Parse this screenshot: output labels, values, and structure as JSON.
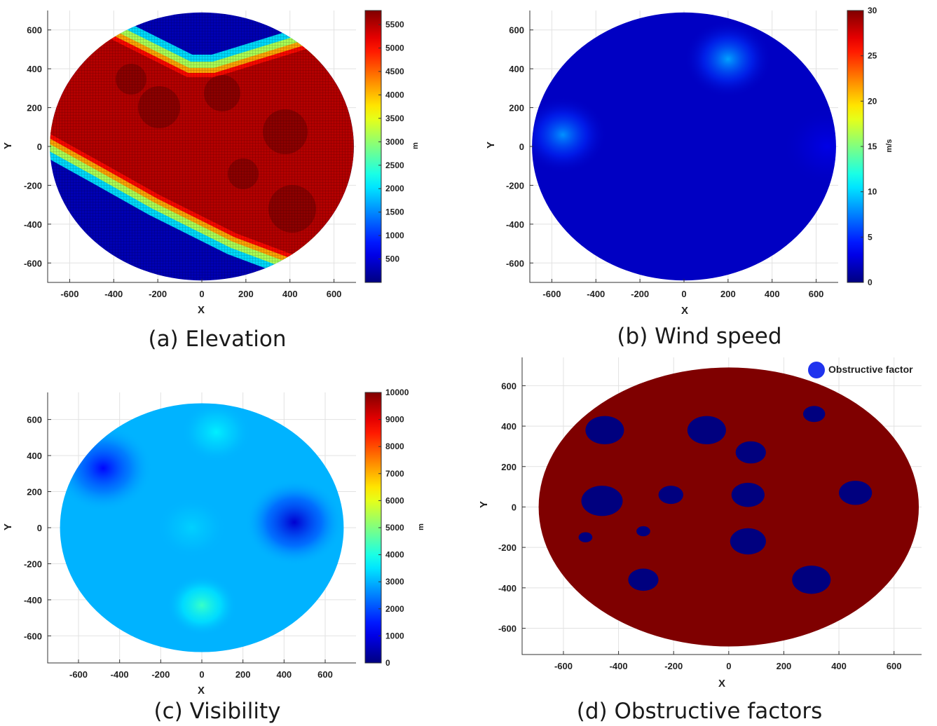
{
  "chart_data": [
    {
      "type": "heatmap",
      "caption": "(a) Elevation",
      "xlabel": "X",
      "ylabel": "Y",
      "xlim": [
        -700,
        700
      ],
      "ylim": [
        -700,
        700
      ],
      "xticks": [
        -600,
        -400,
        -200,
        0,
        200,
        400,
        600
      ],
      "yticks": [
        -600,
        -400,
        -200,
        0,
        200,
        400,
        600
      ],
      "domain_shape": "disk",
      "domain_radius": 690,
      "colormap": "jet",
      "colorbar": {
        "label": "m",
        "min": 0,
        "max": 5800,
        "ticks": [
          500,
          1000,
          1500,
          2000,
          2500,
          3000,
          3500,
          4000,
          4500,
          5000,
          5500
        ]
      },
      "description_values": {
        "plateau_elevation_m": 5500,
        "lowland_elevation_m": 300
      },
      "grid": true
    },
    {
      "type": "heatmap",
      "caption": "(b) Wind speed",
      "xlabel": "X",
      "ylabel": "Y",
      "xlim": [
        -700,
        700
      ],
      "ylim": [
        -700,
        700
      ],
      "xticks": [
        -600,
        -400,
        -200,
        0,
        200,
        400,
        600
      ],
      "yticks": [
        -600,
        -400,
        -200,
        0,
        200,
        400,
        600
      ],
      "domain_shape": "disk",
      "domain_radius": 690,
      "colormap": "jet",
      "colorbar": {
        "label": "m/s",
        "min": 0,
        "max": 30,
        "ticks": [
          0,
          5,
          10,
          15,
          20,
          25,
          30
        ]
      },
      "base_value": 2,
      "peaks": [
        {
          "x": 200,
          "y": 450,
          "value": 8.5
        },
        {
          "x": -550,
          "y": 60,
          "value": 8
        },
        {
          "x": 650,
          "y": 0,
          "value": 3
        }
      ],
      "grid": true
    },
    {
      "type": "heatmap",
      "caption": "(c) Visibility",
      "xlabel": "X",
      "ylabel": "Y",
      "xlim": [
        -750,
        750
      ],
      "ylim": [
        -750,
        750
      ],
      "xticks": [
        -600,
        -400,
        -200,
        0,
        200,
        400,
        600
      ],
      "yticks": [
        -600,
        -400,
        -200,
        0,
        200,
        400,
        600
      ],
      "domain_shape": "disk",
      "domain_radius": 690,
      "colormap": "jet",
      "colorbar": {
        "label": "m",
        "min": 0,
        "max": 10000,
        "ticks": [
          0,
          1000,
          2000,
          3000,
          4000,
          5000,
          6000,
          7000,
          8000,
          9000,
          10000
        ]
      },
      "base_value": 3000,
      "peaks": [
        {
          "x": -480,
          "y": 330,
          "value": 1300
        },
        {
          "x": 450,
          "y": 30,
          "value": 800
        },
        {
          "x": 70,
          "y": 530,
          "value": 3600
        },
        {
          "x": 0,
          "y": -430,
          "value": 4300
        },
        {
          "x": -50,
          "y": 0,
          "value": 3300
        }
      ],
      "grid": true
    },
    {
      "type": "scatter",
      "caption": "(d) Obstructive factors",
      "xlabel": "X",
      "ylabel": "Y",
      "xlim": [
        -750,
        700
      ],
      "ylim": [
        -730,
        740
      ],
      "xticks": [
        -600,
        -400,
        -200,
        0,
        200,
        400,
        600
      ],
      "yticks": [
        -600,
        -400,
        -200,
        0,
        200,
        400,
        600
      ],
      "domain_shape": "disk",
      "domain_radius": 690,
      "legend": {
        "label": "Obstructive factor",
        "location": "top-right"
      },
      "obstacles": [
        {
          "x": -450,
          "y": 380,
          "r": 70
        },
        {
          "x": -80,
          "y": 380,
          "r": 70
        },
        {
          "x": 310,
          "y": 460,
          "r": 40
        },
        {
          "x": 80,
          "y": 270,
          "r": 55
        },
        {
          "x": -460,
          "y": 30,
          "r": 75
        },
        {
          "x": -210,
          "y": 60,
          "r": 45
        },
        {
          "x": 70,
          "y": 60,
          "r": 60
        },
        {
          "x": 460,
          "y": 70,
          "r": 60
        },
        {
          "x": -520,
          "y": -150,
          "r": 25
        },
        {
          "x": -310,
          "y": -120,
          "r": 25
        },
        {
          "x": 70,
          "y": -170,
          "r": 65
        },
        {
          "x": -310,
          "y": -360,
          "r": 55
        },
        {
          "x": 300,
          "y": -360,
          "r": 70
        }
      ],
      "colors": {
        "domain": "#7f0000",
        "obstacle": "#00007f",
        "legend_marker": "#1f33ee"
      },
      "grid": true
    }
  ]
}
